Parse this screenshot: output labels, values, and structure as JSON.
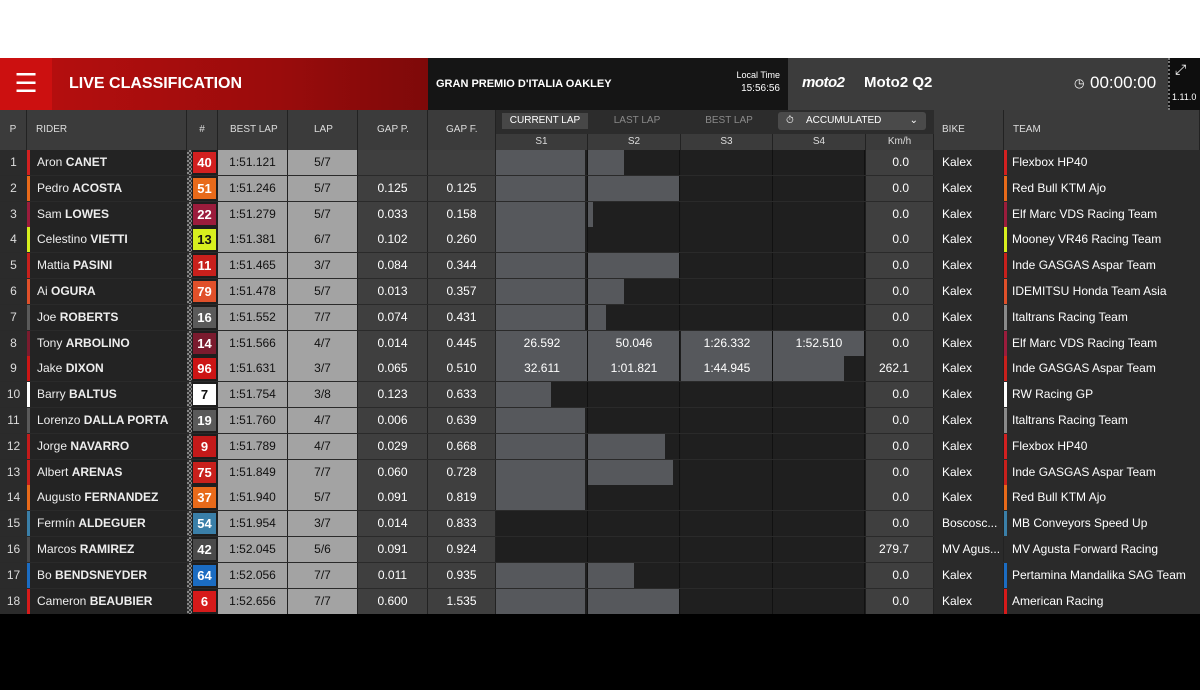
{
  "header": {
    "title": "LIVE CLASSIFICATION",
    "event": "GRAN PREMIO D'ITALIA OAKLEY",
    "local_time_label": "Local Time",
    "local_time": "15:56:56",
    "series_logo": "moto2",
    "session": "Moto2 Q2",
    "timer": "00:00:00",
    "version": "1.11.0"
  },
  "columns": {
    "pos": "P",
    "rider": "RIDER",
    "num": "#",
    "best": "BEST LAP",
    "lap": "LAP",
    "gap_p": "GAP P.",
    "gap_f": "GAP F.",
    "bike": "BIKE",
    "team": "TEAM",
    "tabs": [
      "CURRENT LAP",
      "LAST LAP",
      "BEST LAP"
    ],
    "mode": "ACCUMULATED",
    "sectors": [
      "S1",
      "S2",
      "S3",
      "S4"
    ],
    "speed": "Km/h"
  },
  "colors": {
    "red": "#cc1010",
    "sector_fill": "#56585c",
    "lap_cell": "#a3a3a3"
  },
  "rows": [
    {
      "pos": "1",
      "first": "Aron",
      "last": "CANET",
      "flag": "",
      "num": "40",
      "color": "#d22020",
      "best": "1:51.121",
      "lap": "5/7",
      "gap_p": "",
      "gap_f": "",
      "s": [
        "",
        "",
        "",
        ""
      ],
      "f": [
        0.98,
        0.4,
        0,
        0
      ],
      "kmh": "0.0",
      "bike": "Kalex",
      "team": "Flexbox HP40",
      "tcolor": "#d22020"
    },
    {
      "pos": "2",
      "first": "Pedro",
      "last": "ACOSTA",
      "flag": "",
      "num": "51",
      "color": "#e86a1a",
      "best": "1:51.246",
      "lap": "5/7",
      "gap_p": "0.125",
      "gap_f": "0.125",
      "s": [
        "",
        "",
        "",
        ""
      ],
      "f": [
        0.98,
        1,
        0,
        0
      ],
      "kmh": "0.0",
      "bike": "Kalex",
      "team": "Red Bull KTM Ajo",
      "tcolor": "#e86a1a"
    },
    {
      "pos": "3",
      "first": "Sam",
      "last": "LOWES",
      "flag": "",
      "num": "22",
      "color": "#9b1c3c",
      "best": "1:51.279",
      "lap": "5/7",
      "gap_p": "0.033",
      "gap_f": "0.158",
      "s": [
        "",
        "",
        "",
        ""
      ],
      "f": [
        0.98,
        0.06,
        0,
        0
      ],
      "kmh": "0.0",
      "bike": "Kalex",
      "team": "Elf Marc VDS Racing Team",
      "tcolor": "#9b1c3c"
    },
    {
      "pos": "4",
      "first": "Celestino",
      "last": "VIETTI",
      "flag": "",
      "num": "13",
      "color": "#d7ef1e",
      "best": "1:51.381",
      "lap": "6/7",
      "gap_p": "0.102",
      "gap_f": "0.260",
      "s": [
        "",
        "",
        "",
        ""
      ],
      "f": [
        0.98,
        0,
        0,
        0
      ],
      "kmh": "0.0",
      "bike": "Kalex",
      "team": "Mooney VR46 Racing Team",
      "tcolor": "#d7ef1e"
    },
    {
      "pos": "5",
      "first": "Mattia",
      "last": "PASINI",
      "flag": "",
      "num": "11",
      "color": "#c8201c",
      "best": "1:51.465",
      "lap": "3/7",
      "gap_p": "0.084",
      "gap_f": "0.344",
      "s": [
        "",
        "",
        "",
        ""
      ],
      "f": [
        0.98,
        1,
        0,
        0
      ],
      "kmh": "0.0",
      "bike": "Kalex",
      "team": "Inde GASGAS Aspar Team",
      "tcolor": "#c8201c"
    },
    {
      "pos": "6",
      "first": "Ai",
      "last": "OGURA",
      "flag": "",
      "num": "79",
      "color": "#e0502a",
      "best": "1:51.478",
      "lap": "5/7",
      "gap_p": "0.013",
      "gap_f": "0.357",
      "s": [
        "",
        "",
        "",
        ""
      ],
      "f": [
        0.98,
        0.4,
        0,
        0
      ],
      "kmh": "0.0",
      "bike": "Kalex",
      "team": "IDEMITSU Honda Team Asia",
      "tcolor": "#e0502a"
    },
    {
      "pos": "7",
      "first": "Joe",
      "last": "ROBERTS",
      "flag": "",
      "num": "16",
      "color": "#5a5a5a",
      "best": "1:51.552",
      "lap": "7/7",
      "gap_p": "0.074",
      "gap_f": "0.431",
      "s": [
        "",
        "",
        "",
        ""
      ],
      "f": [
        0.98,
        0.2,
        0,
        0
      ],
      "kmh": "0.0",
      "bike": "Kalex",
      "team": "Italtrans Racing Team",
      "tcolor": "#8a8a8a"
    },
    {
      "pos": "8",
      "first": "Tony",
      "last": "ARBOLINO",
      "flag": "",
      "num": "14",
      "color": "#7a1b2e",
      "best": "1:51.566",
      "lap": "4/7",
      "gap_p": "0.014",
      "gap_f": "0.445",
      "s": [
        "26.592",
        "50.046",
        "1:26.332",
        "1:52.510"
      ],
      "f": [
        1,
        1,
        1,
        1
      ],
      "kmh": "0.0",
      "bike": "Kalex",
      "team": "Elf Marc VDS Racing Team",
      "tcolor": "#9b1c3c"
    },
    {
      "pos": "9",
      "first": "Jake",
      "last": "DIXON",
      "flag": "",
      "num": "96",
      "color": "#cc1515",
      "best": "1:51.631",
      "lap": "3/7",
      "gap_p": "0.065",
      "gap_f": "0.510",
      "s": [
        "32.611",
        "1:01.821",
        "1:44.945",
        ""
      ],
      "f": [
        1,
        1,
        1,
        0.78
      ],
      "kmh": "262.1",
      "bike": "Kalex",
      "team": "Inde GASGAS Aspar Team",
      "tcolor": "#c8201c"
    },
    {
      "pos": "10",
      "first": "Barry",
      "last": "BALTUS",
      "flag": "",
      "num": "7",
      "color": "#ffffff",
      "best": "1:51.754",
      "lap": "3/8",
      "gap_p": "0.123",
      "gap_f": "0.633",
      "s": [
        "",
        "",
        "",
        ""
      ],
      "f": [
        0.6,
        0,
        0,
        0
      ],
      "kmh": "0.0",
      "bike": "Kalex",
      "team": "RW Racing GP",
      "tcolor": "#ffffff"
    },
    {
      "pos": "11",
      "first": "Lorenzo",
      "last": "DALLA PORTA",
      "flag": "",
      "num": "19",
      "color": "#5a5a5a",
      "best": "1:51.760",
      "lap": "4/7",
      "gap_p": "0.006",
      "gap_f": "0.639",
      "s": [
        "",
        "",
        "",
        ""
      ],
      "f": [
        0.98,
        0,
        0,
        0
      ],
      "kmh": "0.0",
      "bike": "Kalex",
      "team": "Italtrans Racing Team",
      "tcolor": "#8a8a8a"
    },
    {
      "pos": "12",
      "first": "Jorge",
      "last": "NAVARRO",
      "flag": "",
      "num": "9",
      "color": "#c41a1a",
      "best": "1:51.789",
      "lap": "4/7",
      "gap_p": "0.029",
      "gap_f": "0.668",
      "s": [
        "",
        "",
        "",
        ""
      ],
      "f": [
        0.98,
        0.85,
        0,
        0
      ],
      "kmh": "0.0",
      "bike": "Kalex",
      "team": "Flexbox HP40",
      "tcolor": "#d22020"
    },
    {
      "pos": "13",
      "first": "Albert",
      "last": "ARENAS",
      "flag": "",
      "num": "75",
      "color": "#c8201c",
      "best": "1:51.849",
      "lap": "7/7",
      "gap_p": "0.060",
      "gap_f": "0.728",
      "s": [
        "",
        "",
        "",
        ""
      ],
      "f": [
        0.98,
        0.93,
        0,
        0
      ],
      "kmh": "0.0",
      "bike": "Kalex",
      "team": "Inde GASGAS Aspar Team",
      "tcolor": "#c8201c"
    },
    {
      "pos": "14",
      "first": "Augusto",
      "last": "FERNANDEZ",
      "flag": "",
      "num": "37",
      "color": "#e86a1a",
      "best": "1:51.940",
      "lap": "5/7",
      "gap_p": "0.091",
      "gap_f": "0.819",
      "s": [
        "",
        "",
        "",
        ""
      ],
      "f": [
        0.98,
        0,
        0,
        0
      ],
      "kmh": "0.0",
      "bike": "Kalex",
      "team": "Red Bull KTM Ajo",
      "tcolor": "#e86a1a"
    },
    {
      "pos": "15",
      "first": "Fermín",
      "last": "ALDEGUER",
      "flag": "",
      "num": "54",
      "color": "#3a7fa8",
      "best": "1:51.954",
      "lap": "3/7",
      "gap_p": "0.014",
      "gap_f": "0.833",
      "s": [
        "",
        "",
        "",
        ""
      ],
      "f": [
        0,
        0,
        0,
        0
      ],
      "kmh": "0.0",
      "bike": "Boscosc...",
      "team": "MB Conveyors Speed Up",
      "tcolor": "#3a7fa8"
    },
    {
      "pos": "16",
      "first": "Marcos",
      "last": "RAMIREZ",
      "flag": "P",
      "num": "42",
      "color": "#4a4a4a",
      "best": "1:52.045",
      "lap": "5/6",
      "gap_p": "0.091",
      "gap_f": "0.924",
      "s": [
        "",
        "",
        "",
        ""
      ],
      "f": [
        0,
        0,
        0,
        0
      ],
      "kmh": "279.7",
      "bike": "MV Agus...",
      "team": "MV Agusta Forward Racing",
      "tcolor": "#2a2a2a"
    },
    {
      "pos": "17",
      "first": "Bo",
      "last": "BENDSNEYDER",
      "flag": "",
      "num": "64",
      "color": "#1b6cc2",
      "best": "1:52.056",
      "lap": "7/7",
      "gap_p": "0.011",
      "gap_f": "0.935",
      "s": [
        "",
        "",
        "",
        ""
      ],
      "f": [
        0.98,
        0.5,
        0,
        0
      ],
      "kmh": "0.0",
      "bike": "Kalex",
      "team": "Pertamina Mandalika SAG Team",
      "tcolor": "#1b6cc2"
    },
    {
      "pos": "18",
      "first": "Cameron",
      "last": "BEAUBIER",
      "flag": "",
      "num": "6",
      "color": "#d61a1a",
      "best": "1:52.656",
      "lap": "7/7",
      "gap_p": "0.600",
      "gap_f": "1.535",
      "s": [
        "",
        "",
        "",
        ""
      ],
      "f": [
        0.98,
        1,
        0,
        0
      ],
      "kmh": "0.0",
      "bike": "Kalex",
      "team": "American Racing",
      "tcolor": "#d61a1a"
    }
  ]
}
